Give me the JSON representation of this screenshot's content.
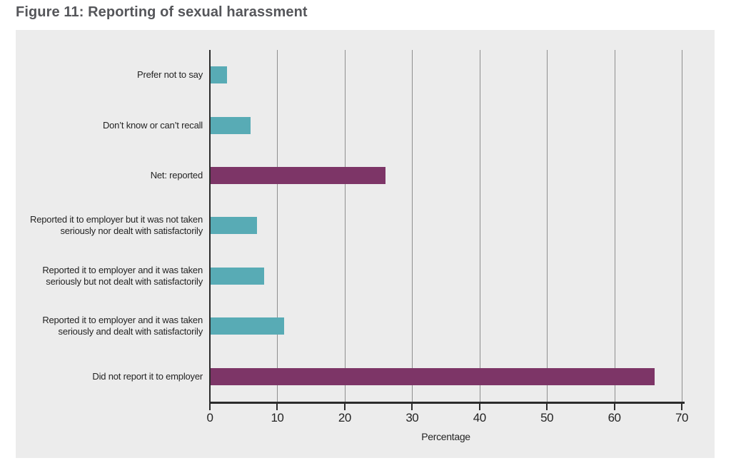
{
  "figure": {
    "title": "Figure 11: Reporting of sexual harassment"
  },
  "chart_data": {
    "type": "bar",
    "orientation": "horizontal",
    "title": "Figure 11: Reporting of sexual harassment",
    "categories": [
      "Prefer not to say",
      "Don’t know or can’t recall",
      "Net: reported",
      "Reported it to employer but it was not taken seriously nor dealt with satisfactorily",
      "Reported it to employer and it was taken seriously but not dealt with satisfactorily",
      "Reported it to employer and it was taken seriously and dealt with satisfactorily",
      "Did not report it to employer"
    ],
    "values": [
      2.5,
      6,
      26,
      7,
      8,
      11,
      66
    ],
    "bar_color_keys": [
      "teal",
      "teal",
      "purple",
      "teal",
      "teal",
      "teal",
      "purple"
    ],
    "colors": {
      "teal": "#58ABB5",
      "purple": "#7D3567",
      "panel_background": "#ECECEC",
      "gridline": "#8E8E8E",
      "axis": "#2B2B2B",
      "text": "#242424",
      "title_text": "#55565A"
    },
    "xlabel": "Percentage",
    "x_ticks": [
      0,
      10,
      20,
      30,
      40,
      50,
      60,
      70
    ],
    "xlim": [
      0,
      70
    ],
    "grid": "vertical gridlines at every x tick",
    "legend": "none"
  }
}
